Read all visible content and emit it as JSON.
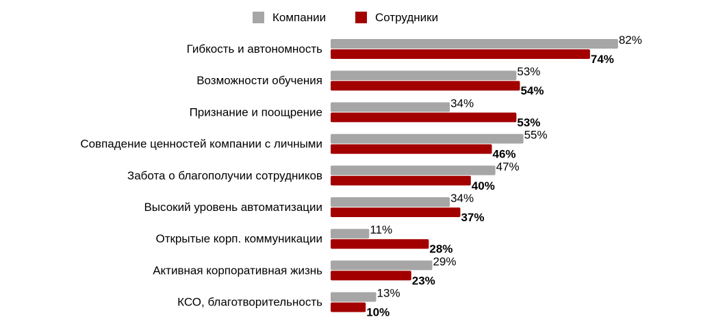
{
  "chart_data": {
    "type": "bar",
    "orientation": "horizontal",
    "legend_position": "top",
    "grid": false,
    "categories": [
      "Гибкость и автономность",
      "Возможности обучения",
      "Признание и поощрение",
      "Совпадение ценностей компании с личными",
      "Забота о благополучии сотрудников",
      "Высокий уровень автоматизации",
      "Открытые корп. коммуникации",
      "Активная корпоративная жизнь",
      "КСО, благотворительность"
    ],
    "series": [
      {
        "name": "Компании",
        "color": "#a6a6a6",
        "values": [
          82,
          53,
          34,
          55,
          47,
          34,
          11,
          29,
          13
        ],
        "labels": [
          "82%",
          "53%",
          "34%",
          "55%",
          "47%",
          "34%",
          "11%",
          "29%",
          "13%"
        ],
        "label_bold": false
      },
      {
        "name": "Сотрудники",
        "color": "#a30000",
        "values": [
          74,
          54,
          53,
          46,
          40,
          37,
          28,
          23,
          10
        ],
        "labels": [
          "74%",
          "54%",
          "53%",
          "46%",
          "40%",
          "37%",
          "28%",
          "23%",
          "10%"
        ],
        "label_bold": true
      }
    ],
    "xlim": [
      0,
      100
    ]
  }
}
